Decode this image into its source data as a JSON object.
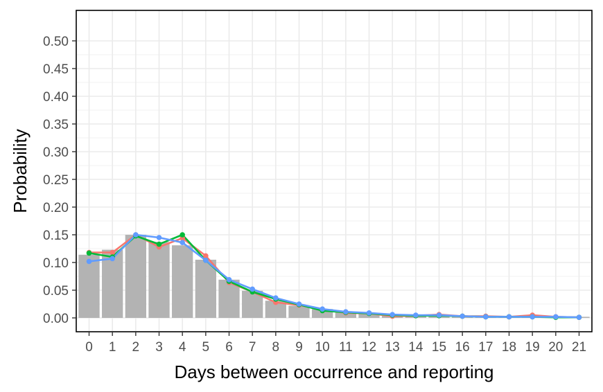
{
  "chart_data": {
    "type": "bar",
    "title": "",
    "xlabel": "Days between occurrence and reporting",
    "ylabel": "Probability",
    "x": [
      0,
      1,
      2,
      3,
      4,
      5,
      6,
      7,
      8,
      9,
      10,
      11,
      12,
      13,
      14,
      15,
      16,
      17,
      18,
      19,
      20,
      21
    ],
    "ylim": [
      -0.025,
      0.555
    ],
    "y_ticks": [
      0.0,
      0.05,
      0.1,
      0.15,
      0.2,
      0.25,
      0.3,
      0.35,
      0.4,
      0.45,
      0.5
    ],
    "y_tick_labels": [
      "0.00",
      "0.05",
      "0.10",
      "0.15",
      "0.20",
      "0.25",
      "0.30",
      "0.35",
      "0.40",
      "0.45",
      "0.50"
    ],
    "grid": true,
    "legend": "none",
    "bars": {
      "color": "#b3b3b3",
      "values": [
        0.114,
        0.123,
        0.15,
        0.137,
        0.131,
        0.105,
        0.069,
        0.049,
        0.031,
        0.022,
        0.016,
        0.011,
        0.008,
        0.006,
        0.005,
        0.004,
        0.004,
        0.003,
        0.003,
        0.003,
        0.002,
        0.002
      ]
    },
    "series": [
      {
        "color": "#f8766d",
        "values": [
          0.118,
          0.118,
          0.15,
          0.128,
          0.144,
          0.112,
          0.064,
          0.047,
          0.028,
          0.023,
          0.015,
          0.009,
          0.008,
          0.003,
          0.004,
          0.006,
          0.003,
          0.003,
          0.002,
          0.005,
          0.002,
          0.001
        ]
      },
      {
        "color": "#00ba38",
        "values": [
          0.117,
          0.11,
          0.148,
          0.133,
          0.15,
          0.104,
          0.066,
          0.047,
          0.034,
          0.024,
          0.013,
          0.01,
          0.008,
          0.005,
          0.004,
          0.004,
          0.003,
          0.002,
          0.002,
          0.002,
          0.001,
          0.001
        ]
      },
      {
        "color": "#619cff",
        "values": [
          0.102,
          0.107,
          0.15,
          0.145,
          0.136,
          0.104,
          0.069,
          0.052,
          0.036,
          0.025,
          0.016,
          0.011,
          0.009,
          0.006,
          0.005,
          0.005,
          0.003,
          0.002,
          0.002,
          0.002,
          0.002,
          0.001
        ]
      }
    ]
  }
}
